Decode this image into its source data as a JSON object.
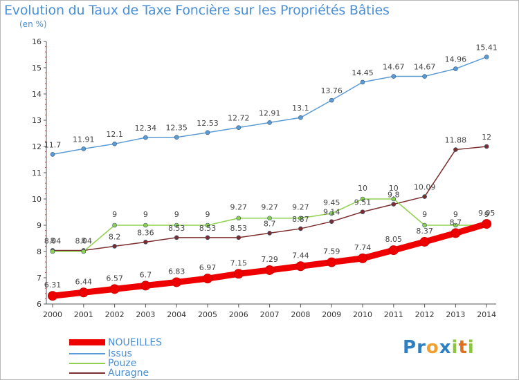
{
  "title": "Evolution du Taux de Taxe Foncière sur les Propriétés Bâties",
  "unit_label": "(en %)",
  "brand": {
    "text": "Proxiti",
    "letters": [
      {
        "ch": "P",
        "color": "#2f7fc1"
      },
      {
        "ch": "r",
        "color": "#2f7fc1"
      },
      {
        "ch": "o",
        "color": "#f0a030"
      },
      {
        "ch": "x",
        "color": "#2f7fc1"
      },
      {
        "ch": "i",
        "color": "#8cc63f"
      },
      {
        "ch": "t",
        "color": "#e07020"
      },
      {
        "ch": "i",
        "color": "#8cc63f"
      }
    ]
  },
  "chart_data": {
    "type": "line",
    "title": "Evolution du Taux de Taxe Foncière sur les Propriétés Bâties",
    "ylabel": "(en %)",
    "x": [
      "2000",
      "2001",
      "2002",
      "2003",
      "2004",
      "2005",
      "2006",
      "2007",
      "2008",
      "2009",
      "2010",
      "2011",
      "2012",
      "2013",
      "2014"
    ],
    "ylim": [
      6,
      16
    ],
    "yticks": [
      "6",
      "7",
      "8",
      "9",
      "10",
      "11",
      "12",
      "13",
      "14",
      "15",
      "16"
    ],
    "grid": false,
    "legend_position": "bottom-left",
    "series": [
      {
        "name": "NOUEILLES",
        "color": "#ee0000",
        "values": [
          6.31,
          6.44,
          6.57,
          6.7,
          6.83,
          6.97,
          7.15,
          7.29,
          7.44,
          7.59,
          7.74,
          8.05,
          8.37,
          8.7,
          9.05
        ],
        "labels": [
          "6.31",
          "6.44",
          "6.57",
          "6.7",
          "6.83",
          "6.97",
          "7.15",
          "7.29",
          "7.44",
          "7.59",
          "7.74",
          "8.05",
          "8.37",
          "8.7",
          "9.05"
        ]
      },
      {
        "name": "Issus",
        "color": "#5b9bd5",
        "values": [
          11.7,
          11.91,
          12.1,
          12.34,
          12.35,
          12.53,
          12.72,
          12.91,
          13.1,
          13.76,
          14.45,
          14.67,
          14.67,
          14.96,
          15.41
        ],
        "labels": [
          "11.7",
          "11.91",
          "12.1",
          "12.34",
          "12.35",
          "12.53",
          "12.72",
          "12.91",
          "13.1",
          "13.76",
          "14.45",
          "14.67",
          "14.67",
          "14.96",
          "15.41"
        ]
      },
      {
        "name": "Pouze",
        "color": "#8fd14f",
        "values": [
          8,
          8,
          9,
          9,
          9,
          9,
          9.27,
          9.27,
          9.27,
          9.45,
          10,
          10,
          9,
          9,
          9
        ],
        "labels": [
          "8",
          "8",
          "9",
          "9",
          "9",
          "9",
          "9.27",
          "9.27",
          "9.27",
          "9.45",
          "10",
          "10",
          "9",
          "9",
          "9"
        ]
      },
      {
        "name": "Auragne",
        "color": "#7b2c2c",
        "values": [
          8.04,
          8.04,
          8.2,
          8.36,
          8.53,
          8.53,
          8.53,
          8.7,
          8.87,
          9.14,
          9.51,
          9.8,
          10.09,
          11.88,
          12
        ],
        "labels": [
          "8.04",
          "8.04",
          "8.2",
          "8.36",
          "8.53",
          "8.53",
          "8.53",
          "8.7",
          "8.87",
          "9.14",
          "9.51",
          "9.8",
          "10.09",
          "11.88",
          "12"
        ]
      }
    ]
  }
}
